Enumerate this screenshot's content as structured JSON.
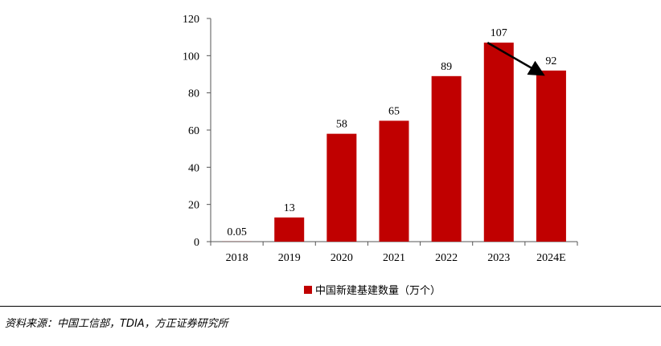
{
  "chart_data": {
    "type": "bar",
    "categories": [
      "2018",
      "2019",
      "2020",
      "2021",
      "2022",
      "2023",
      "2024E"
    ],
    "series": [
      {
        "name": "中国新建基建数量（万个）",
        "values": [
          0.05,
          13,
          58,
          65,
          89,
          107,
          92
        ],
        "labels": [
          "0.05",
          "13",
          "58",
          "65",
          "89",
          "107",
          "92"
        ]
      }
    ],
    "yticks": [
      "0",
      "20",
      "40",
      "60",
      "80",
      "100",
      "120"
    ],
    "ylim": [
      0,
      120
    ],
    "bar_color": "#C00000",
    "legend_position": "bottom",
    "grid": false,
    "annotation": "black arrow from 2023 bar top to 2024E bar top"
  },
  "legend": {
    "label": "中国新建基建数量（万个）",
    "color": "#C00000"
  },
  "source": "资料来源：中国工信部，TDIA，方正证券研究所"
}
